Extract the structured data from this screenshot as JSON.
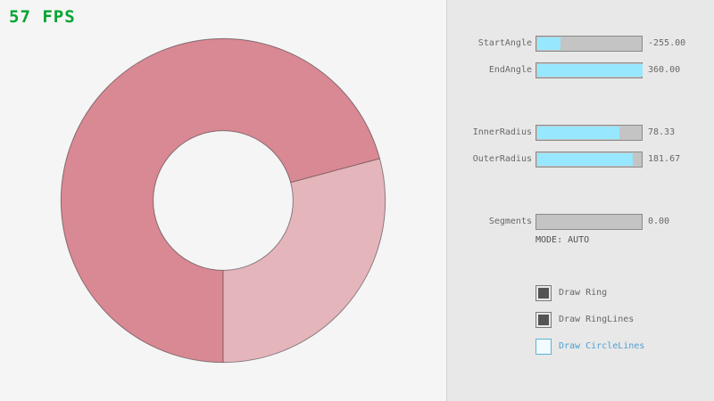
{
  "fps": {
    "text": "57 FPS"
  },
  "colors": {
    "background": "#f5f5f5",
    "panel_background": "#e8e8e8",
    "slider_fill_accent": "#97e8ff",
    "fps_green": "#00a431",
    "focus_blue": "#5bb2d9",
    "mode_text_gray": "#505050"
  },
  "ring": {
    "fill_single": "#e5b5bc",
    "fill_overlap": "#d98994",
    "line_color": "rgba(0,0,0,0.42)"
  },
  "sliders": [
    {
      "label": "StartAngle",
      "value": "-255.00",
      "fill_percent": 21.7
    },
    {
      "label": "EndAngle",
      "value": "360.00",
      "fill_percent": 100
    },
    {
      "label": "InnerRadius",
      "value": "78.33",
      "fill_percent": 78.3
    },
    {
      "label": "OuterRadius",
      "value": "181.67",
      "fill_percent": 90.8
    },
    {
      "label": "Segments",
      "value": "0.00",
      "fill_percent": 0
    }
  ],
  "mode": {
    "text": "MODE: AUTO"
  },
  "checkboxes": [
    {
      "label": "Draw Ring",
      "checked": true
    },
    {
      "label": "Draw RingLines",
      "checked": true
    },
    {
      "label": "Draw CircleLines",
      "checked": false
    }
  ]
}
